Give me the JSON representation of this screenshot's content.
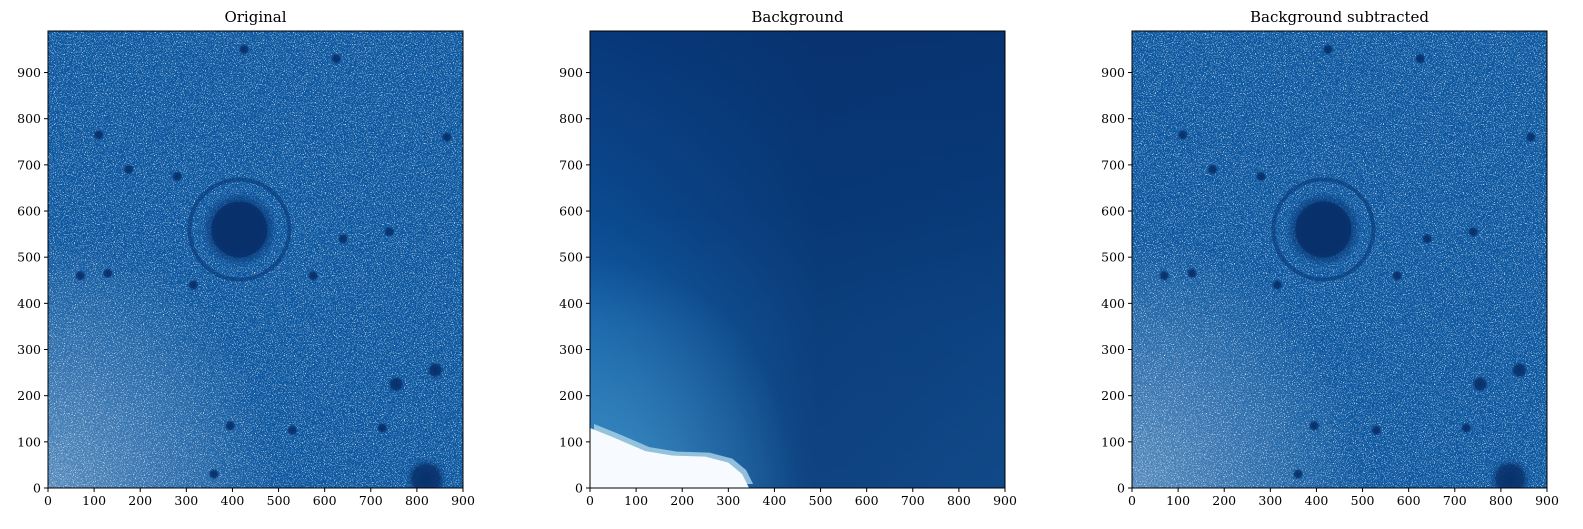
{
  "chart_data": [
    {
      "type": "heatmap",
      "title": "Original",
      "xlim": [
        0,
        900
      ],
      "ylim": [
        0,
        990
      ],
      "xticks": [
        "0",
        "100",
        "200",
        "300",
        "400",
        "500",
        "600",
        "700",
        "800",
        "900"
      ],
      "yticks": [
        "0",
        "100",
        "200",
        "300",
        "400",
        "500",
        "600",
        "700",
        "800",
        "900"
      ],
      "colormap": "Blues",
      "background_color": "#0d57a1",
      "noise_color": "#ffffff",
      "features": [
        {
          "kind": "galaxy",
          "x": 415,
          "y": 560,
          "value": "dark"
        },
        {
          "kind": "source",
          "x": 820,
          "y": 20
        },
        {
          "kind": "source",
          "x": 840,
          "y": 255
        },
        {
          "kind": "source",
          "x": 755,
          "y": 225
        },
        {
          "kind": "source",
          "x": 530,
          "y": 125
        },
        {
          "kind": "source",
          "x": 425,
          "y": 950
        },
        {
          "kind": "source",
          "x": 625,
          "y": 930
        },
        {
          "kind": "source",
          "x": 110,
          "y": 765
        },
        {
          "kind": "source",
          "x": 865,
          "y": 760
        },
        {
          "kind": "source",
          "x": 740,
          "y": 555
        },
        {
          "kind": "source",
          "x": 640,
          "y": 540
        },
        {
          "kind": "source",
          "x": 130,
          "y": 465
        },
        {
          "kind": "source",
          "x": 315,
          "y": 440
        },
        {
          "kind": "source",
          "x": 360,
          "y": 30
        },
        {
          "kind": "source",
          "x": 175,
          "y": 690
        },
        {
          "kind": "source",
          "x": 280,
          "y": 675
        },
        {
          "kind": "source",
          "x": 575,
          "y": 460
        },
        {
          "kind": "source",
          "x": 725,
          "y": 130
        },
        {
          "kind": "source",
          "x": 395,
          "y": 135
        },
        {
          "kind": "source",
          "x": 70,
          "y": 460
        }
      ]
    },
    {
      "type": "heatmap",
      "title": "Background",
      "xlim": [
        0,
        900
      ],
      "ylim": [
        0,
        990
      ],
      "xticks": [
        "0",
        "100",
        "200",
        "300",
        "400",
        "500",
        "600",
        "700",
        "800",
        "900"
      ],
      "yticks": [
        "0",
        "100",
        "200",
        "300",
        "400",
        "500",
        "600",
        "700",
        "800",
        "900"
      ],
      "colormap": "Blues",
      "color_dark": "#08306b",
      "color_mid": "#1764ab",
      "color_light": "#f7fbff",
      "light_region_boundary": [
        [
          0,
          130
        ],
        [
          50,
          110
        ],
        [
          120,
          80
        ],
        [
          180,
          70
        ],
        [
          250,
          68
        ],
        [
          300,
          55
        ],
        [
          330,
          30
        ],
        [
          345,
          0
        ]
      ]
    },
    {
      "type": "heatmap",
      "title": "Background subtracted",
      "xlim": [
        0,
        900
      ],
      "ylim": [
        0,
        990
      ],
      "xticks": [
        "0",
        "100",
        "200",
        "300",
        "400",
        "500",
        "600",
        "700",
        "800",
        "900"
      ],
      "yticks": [
        "0",
        "100",
        "200",
        "300",
        "400",
        "500",
        "600",
        "700",
        "800",
        "900"
      ],
      "colormap": "Blues",
      "background_color": "#0d57a1",
      "noise_color": "#ffffff",
      "features_same_as": "Original"
    }
  ]
}
